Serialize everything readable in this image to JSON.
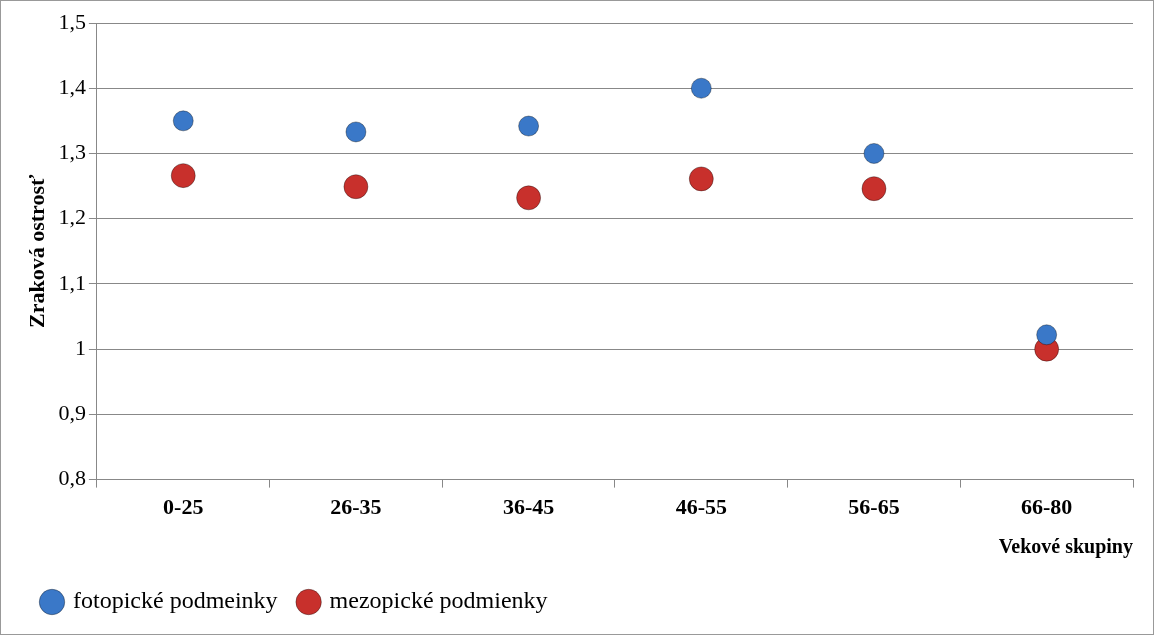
{
  "chart_data": {
    "type": "scatter",
    "ylabel": "Zraková ostrosť",
    "xlabel": "Vekové skupiny",
    "categories": [
      "0-25",
      "26-35",
      "36-45",
      "46-55",
      "56-65",
      "66-80"
    ],
    "series": [
      {
        "name": "fotopické podmeinky",
        "color": "#3a78c8",
        "values": [
          1.35,
          1.333,
          1.342,
          1.4,
          1.3,
          1.022
        ]
      },
      {
        "name": "mezopické podmienky",
        "color": "#c8302c",
        "values": [
          1.266,
          1.249,
          1.232,
          1.261,
          1.246,
          1.0
        ]
      }
    ],
    "ylim": [
      0.8,
      1.5
    ],
    "yticks": [
      {
        "value": 0.8,
        "label": "0,8"
      },
      {
        "value": 0.9,
        "label": "0,9"
      },
      1,
      {
        "value": 1.1,
        "label": "1,1"
      },
      {
        "value": 1.2,
        "label": "1,2"
      },
      {
        "value": 1.3,
        "label": "1,3"
      },
      {
        "value": 1.4,
        "label": "1,4"
      },
      {
        "value": 1.5,
        "label": "1,5"
      }
    ],
    "grid": "y",
    "legend": "bottom left",
    "marker": "circle"
  }
}
